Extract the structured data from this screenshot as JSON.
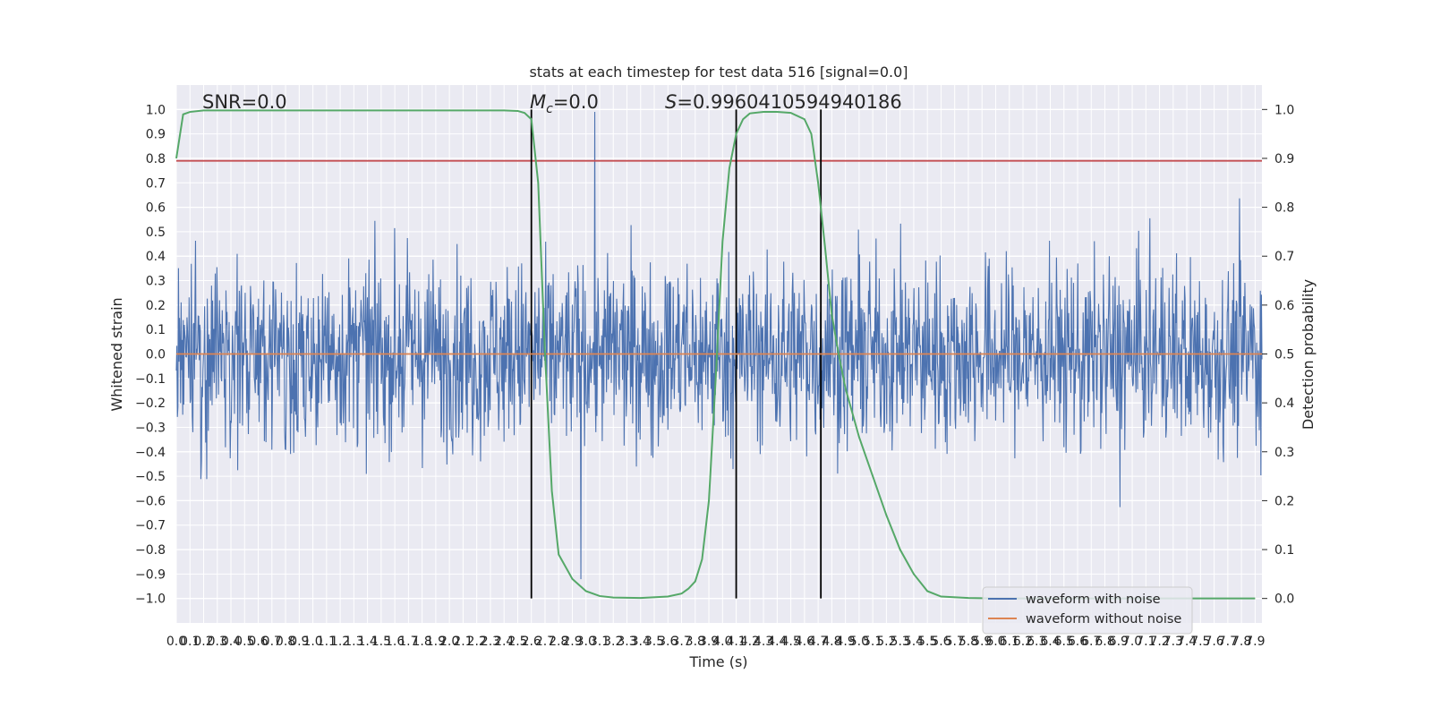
{
  "chart_data": {
    "type": "line",
    "title": "stats at each timestep for test data 516 [signal=0.0]",
    "xlabel": "Time (s)",
    "ylabel_left": "Whitened strain",
    "ylabel_right": "Detection probability",
    "xlim": [
      0.0,
      7.95
    ],
    "ylim_left": [
      -1.1,
      1.1
    ],
    "ylim_right": [
      -0.05,
      1.05
    ],
    "x_ticks": [
      "0.0",
      "0.1",
      "0.2",
      "0.3",
      "0.4",
      "0.5",
      "0.6",
      "0.7",
      "0.8",
      "0.9",
      "1.0",
      "1.1",
      "1.2",
      "1.3",
      "1.4",
      "1.5",
      "1.6",
      "1.7",
      "1.8",
      "1.9",
      "2.0",
      "2.1",
      "2.2",
      "2.3",
      "2.4",
      "2.5",
      "2.6",
      "2.7",
      "2.8",
      "2.9",
      "3.0",
      "3.1",
      "3.2",
      "3.3",
      "3.4",
      "3.5",
      "3.6",
      "3.7",
      "3.8",
      "3.9",
      "4.0",
      "4.1",
      "4.2",
      "4.3",
      "4.4",
      "4.5",
      "4.6",
      "4.7",
      "4.8",
      "4.9",
      "5.0",
      "5.1",
      "5.2",
      "5.3",
      "5.4",
      "5.5",
      "5.6",
      "5.7",
      "5.8",
      "5.9",
      "6.0",
      "6.1",
      "6.2",
      "6.3",
      "6.4",
      "6.5",
      "6.6",
      "6.7",
      "6.8",
      "6.9",
      "7.0",
      "7.1",
      "7.2",
      "7.3",
      "7.4",
      "7.5",
      "7.6",
      "7.7",
      "7.8",
      "7.9"
    ],
    "y_ticks_left": [
      "-1.0",
      "-0.9",
      "-0.8",
      "-0.7",
      "-0.6",
      "-0.5",
      "-0.4",
      "-0.3",
      "-0.2",
      "-0.1",
      "0.0",
      "0.1",
      "0.2",
      "0.3",
      "0.4",
      "0.5",
      "0.6",
      "0.7",
      "0.8",
      "0.9",
      "1.0"
    ],
    "y_ticks_right": [
      "0.0",
      "0.1",
      "0.2",
      "0.3",
      "0.4",
      "0.5",
      "0.6",
      "0.7",
      "0.8",
      "0.9",
      "1.0"
    ],
    "grid": true,
    "annotations": {
      "snr": "SNR=0.0",
      "mc_symbol": "M",
      "mc_subscript": "c",
      "mc_value": "=0.0",
      "s_symbol": "S",
      "s_value": "=0.9960410594940186"
    },
    "legend": {
      "placement": "lower-right",
      "entries": [
        {
          "label": "waveform with noise",
          "color": "#4c72b0"
        },
        {
          "label": "waveform without noise",
          "color": "#dd8452"
        }
      ]
    },
    "series": [
      {
        "name": "waveform with noise",
        "axis": "left",
        "color": "#4c72b0",
        "style": "noise",
        "noise_params": {
          "samples_per_second": 256,
          "positive_extreme": 0.99,
          "negative_extreme": -0.98,
          "typical_amplitude": 0.45
        }
      },
      {
        "name": "waveform without noise",
        "axis": "left",
        "color": "#dd8452",
        "x": [
          0.0,
          7.95
        ],
        "y": [
          0.0,
          0.0
        ]
      },
      {
        "name": "detection probability",
        "axis": "right",
        "color": "#55a868",
        "x": [
          0.0,
          0.05,
          0.1,
          0.2,
          0.5,
          1.0,
          2.0,
          2.4,
          2.5,
          2.55,
          2.6,
          2.65,
          2.7,
          2.75,
          2.8,
          2.9,
          3.0,
          3.1,
          3.2,
          3.4,
          3.6,
          3.7,
          3.75,
          3.8,
          3.85,
          3.9,
          3.95,
          4.0,
          4.05,
          4.1,
          4.15,
          4.2,
          4.3,
          4.4,
          4.5,
          4.6,
          4.65,
          4.7,
          4.75,
          4.8,
          4.85,
          4.9,
          5.0,
          5.1,
          5.2,
          5.3,
          5.4,
          5.5,
          5.6,
          5.8,
          6.0,
          7.0,
          7.9
        ],
        "y": [
          0.9,
          0.99,
          0.995,
          0.998,
          0.998,
          0.998,
          0.998,
          0.998,
          0.997,
          0.993,
          0.98,
          0.85,
          0.5,
          0.22,
          0.09,
          0.04,
          0.015,
          0.005,
          0.002,
          0.001,
          0.004,
          0.01,
          0.02,
          0.035,
          0.08,
          0.2,
          0.45,
          0.73,
          0.88,
          0.95,
          0.98,
          0.992,
          0.995,
          0.995,
          0.993,
          0.98,
          0.95,
          0.85,
          0.72,
          0.58,
          0.5,
          0.43,
          0.33,
          0.25,
          0.17,
          0.1,
          0.05,
          0.015,
          0.004,
          0.001,
          0.0,
          0.0,
          0.0
        ]
      }
    ],
    "reference_lines": [
      {
        "name": "threshold",
        "orientation": "horizontal",
        "axis": "left",
        "value": 0.79,
        "color": "#c44e52"
      },
      {
        "name": "event-line-1",
        "orientation": "vertical",
        "value": 2.6,
        "color": "#000000"
      },
      {
        "name": "event-line-2",
        "orientation": "vertical",
        "value": 4.1,
        "color": "#000000"
      },
      {
        "name": "event-line-3",
        "orientation": "vertical",
        "value": 4.72,
        "color": "#000000"
      }
    ]
  }
}
